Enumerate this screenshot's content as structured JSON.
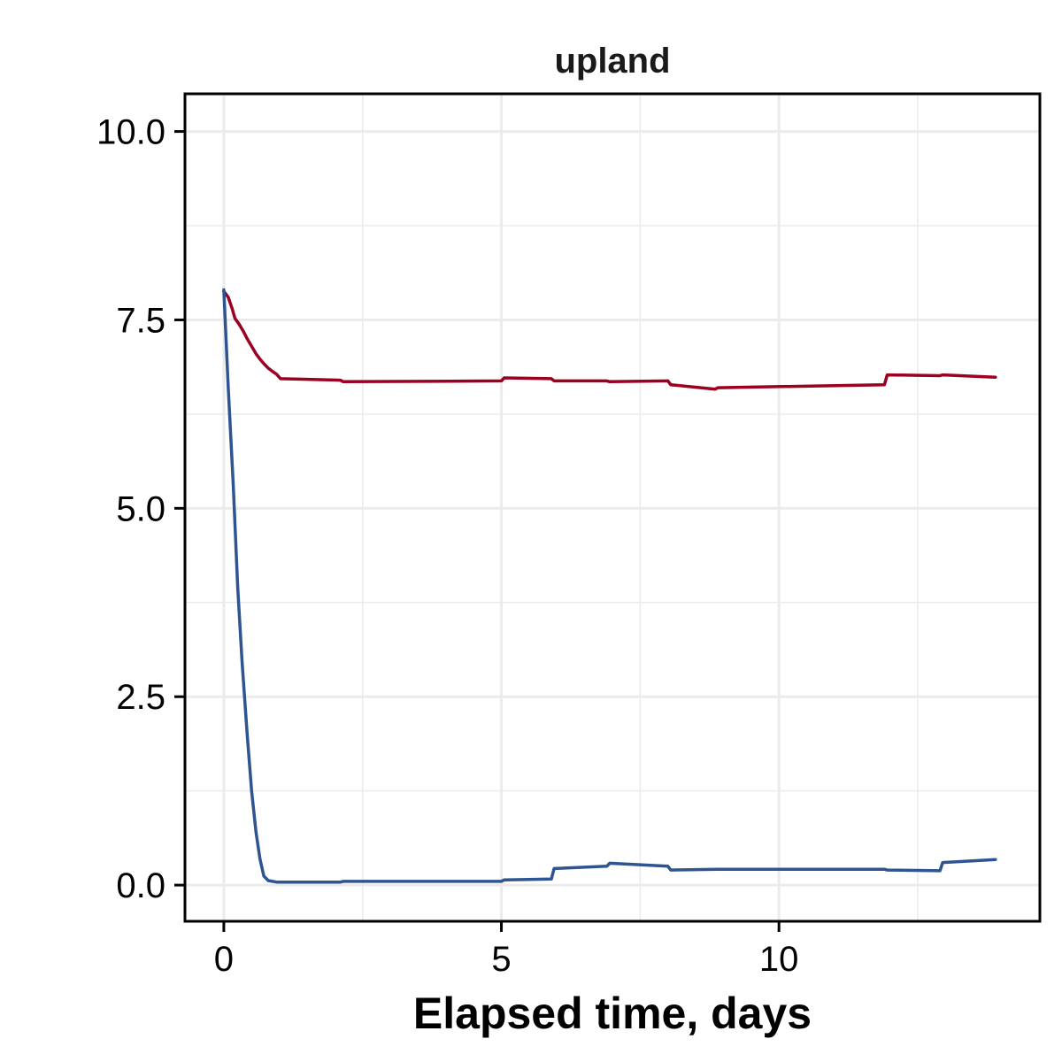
{
  "chart_data": {
    "type": "line",
    "title": "upland",
    "xlabel": "Elapsed time, days",
    "ylabel": "",
    "xlim": [
      -0.7,
      14.7
    ],
    "ylim": [
      -0.48,
      10.5
    ],
    "x_ticks": [
      0,
      5,
      10
    ],
    "x_tick_labels": [
      "0",
      "5",
      "10"
    ],
    "y_ticks": [
      0.0,
      2.5,
      5.0,
      7.5,
      10.0
    ],
    "y_tick_labels": [
      "0.0",
      "2.5",
      "5.0",
      "7.5",
      "10.0"
    ],
    "grid": true,
    "legend": "none",
    "series": [
      {
        "color": "#9b0020",
        "x": [
          0.0,
          0.08,
          0.15,
          0.2,
          0.27,
          0.35,
          0.42,
          0.5,
          0.58,
          0.65,
          0.72,
          0.8,
          0.87,
          0.95,
          1.02,
          2.1,
          2.15,
          5.0,
          5.05,
          5.9,
          5.95,
          6.9,
          6.95,
          8.0,
          8.05,
          8.85,
          8.9,
          11.9,
          11.95,
          12.9,
          12.95,
          13.9
        ],
        "y": [
          7.88,
          7.8,
          7.65,
          7.52,
          7.45,
          7.35,
          7.25,
          7.15,
          7.05,
          6.98,
          6.92,
          6.86,
          6.82,
          6.78,
          6.72,
          6.7,
          6.68,
          6.69,
          6.73,
          6.72,
          6.69,
          6.69,
          6.68,
          6.69,
          6.64,
          6.58,
          6.6,
          6.64,
          6.77,
          6.76,
          6.77,
          6.74
        ]
      },
      {
        "color": "#2e5591",
        "x": [
          0.0,
          0.08,
          0.17,
          0.25,
          0.33,
          0.42,
          0.5,
          0.58,
          0.65,
          0.72,
          0.8,
          0.88,
          0.95,
          1.0,
          2.1,
          2.15,
          5.0,
          5.05,
          5.9,
          5.95,
          6.9,
          6.95,
          8.0,
          8.05,
          8.9,
          11.9,
          11.95,
          12.9,
          12.95,
          13.9
        ],
        "y": [
          7.9,
          6.6,
          5.3,
          3.95,
          2.95,
          2.0,
          1.25,
          0.7,
          0.35,
          0.12,
          0.06,
          0.05,
          0.04,
          0.04,
          0.04,
          0.05,
          0.05,
          0.07,
          0.08,
          0.22,
          0.25,
          0.29,
          0.25,
          0.2,
          0.21,
          0.21,
          0.2,
          0.19,
          0.3,
          0.34
        ]
      }
    ]
  }
}
